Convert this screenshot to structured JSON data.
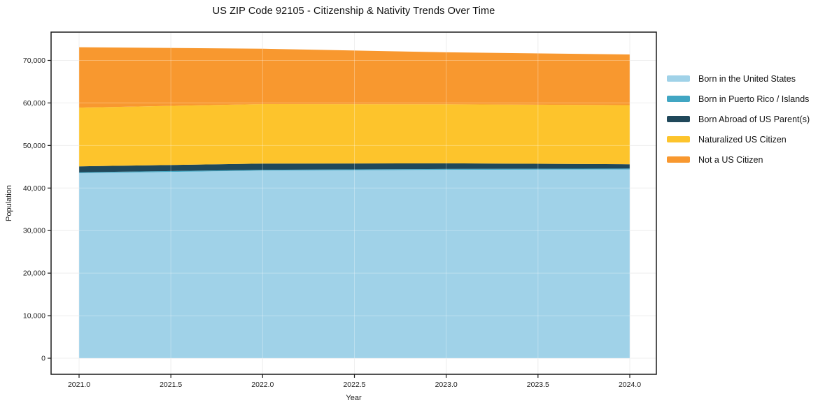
{
  "chart_data": {
    "type": "area",
    "stacked": true,
    "title": "US ZIP Code 92105 - Citizenship & Nativity Trends Over Time",
    "xlabel": "Year",
    "ylabel": "Population",
    "grid": true,
    "legend_position": "right",
    "x": [
      2021,
      2022,
      2023,
      2024
    ],
    "series": [
      {
        "name": "Born in the United States",
        "color": "#A0D2E8",
        "values": [
          43500,
          44100,
          44300,
          44400
        ]
      },
      {
        "name": "Born in Puerto Rico / Islands",
        "color": "#41A6C3",
        "values": [
          200,
          200,
          200,
          200
        ]
      },
      {
        "name": "Born Abroad of US Parent(s)",
        "color": "#20485A",
        "values": [
          1400,
          1450,
          1300,
          1000
        ]
      },
      {
        "name": "Naturalized US Citizen",
        "color": "#FDC42C",
        "values": [
          13800,
          14000,
          13900,
          13900
        ]
      },
      {
        "name": "Not a US Citizen",
        "color": "#F8982F",
        "values": [
          14200,
          13000,
          12200,
          11900
        ]
      }
    ],
    "stacked_totals": [
      73100,
      72750,
      71900,
      71400
    ],
    "x_axis": {
      "tick_values": [
        2021.0,
        2021.5,
        2022.0,
        2022.5,
        2023.0,
        2023.5,
        2024.0
      ],
      "tick_labels": [
        "2021.0",
        "2021.5",
        "2022.0",
        "2022.5",
        "2023.0",
        "2023.5",
        "2024.0"
      ],
      "xlim": [
        2020.85,
        2024.15
      ]
    },
    "y_axis": {
      "tick_values": [
        0,
        10000,
        20000,
        30000,
        40000,
        50000,
        60000,
        70000
      ],
      "tick_labels": [
        "0",
        "10,000",
        "20,000",
        "30,000",
        "40,000",
        "50,000",
        "60,000",
        "70,000"
      ],
      "ylim": [
        -3800,
        76650
      ]
    },
    "colors": {
      "grid": "#E8E8E8",
      "grid_overlay": "rgba(255,255,255,0.3)",
      "spine": "#1a1a1a",
      "tick_text": "#1d1d1d",
      "background": "#ffffff"
    }
  }
}
